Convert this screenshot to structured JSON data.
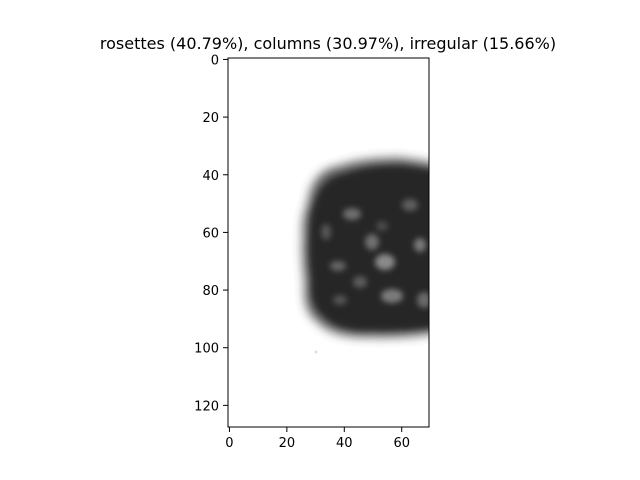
{
  "chart_data": {
    "type": "heatmap",
    "title": "rosettes (40.79%), columns (30.97%), irregular (15.66%)",
    "xlabel": "",
    "ylabel": "",
    "xlim": [
      -0.5,
      69.5
    ],
    "ylim": [
      127.5,
      -0.5
    ],
    "x_ticks": [
      0,
      20,
      40,
      60
    ],
    "y_ticks": [
      0,
      20,
      40,
      60,
      80,
      100,
      120
    ],
    "colormap": "grayscale",
    "grid": false,
    "image_content": "blurry dark grayscale particle cut off at the right edge",
    "colors": {
      "background": "#ffffff",
      "axis": "#000000",
      "particle_dark": "#2a2a2a",
      "particle_mid": "#5a5a5a"
    }
  }
}
